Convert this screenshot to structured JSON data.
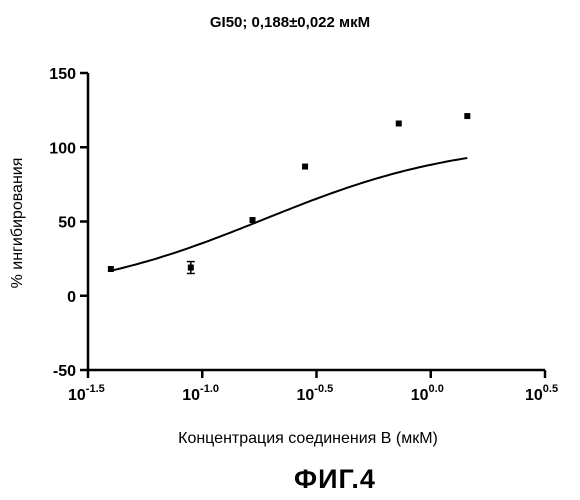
{
  "chart_data": {
    "type": "scatter",
    "title": "GI50; 0,188±0,022 мкМ",
    "xlabel": "Концентрация соединения В (мкМ)",
    "ylabel": "% ингибирования",
    "x_scale": "log10",
    "xlim": [
      -1.5,
      0.5
    ],
    "ylim": [
      -50,
      150
    ],
    "x_ticks": [
      {
        "base": "10",
        "exp": "-1.5"
      },
      {
        "base": "10",
        "exp": "-1.0"
      },
      {
        "base": "10",
        "exp": "-0.5"
      },
      {
        "base": "10",
        "exp": "0.0"
      },
      {
        "base": "10",
        "exp": "0.5"
      }
    ],
    "y_ticks": [
      "150",
      "100",
      "50",
      "0",
      "-50"
    ],
    "points": [
      {
        "log_x": -1.4,
        "y": 18
      },
      {
        "log_x": -1.05,
        "y": 19,
        "err": 4
      },
      {
        "log_x": -0.78,
        "y": 51
      },
      {
        "log_x": -0.55,
        "y": 87
      },
      {
        "log_x": -0.14,
        "y": 116
      },
      {
        "log_x": 0.16,
        "y": 121
      }
    ],
    "fit_curve": {
      "model": "sigmoidal dose-response",
      "bottom": -2,
      "top": 105,
      "log_ec50": -0.73,
      "hill_slope": 1.0,
      "x_range": [
        -1.4,
        0.16
      ]
    }
  },
  "figure_caption": "ФИГ.4"
}
